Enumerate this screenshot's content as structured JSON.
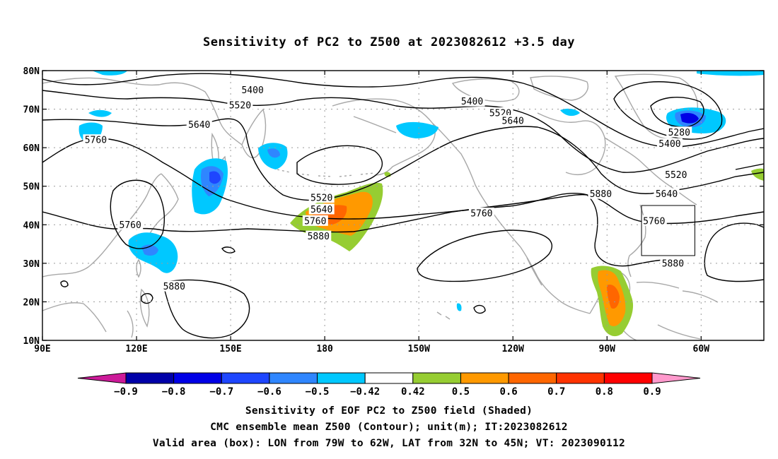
{
  "title": "Sensitivity of PC2 to Z500 at 2023082612 +3.5 day",
  "footer": {
    "line1": "Sensitivity of EOF PC2 to Z500 field (Shaded)",
    "line2": "CMC ensemble mean Z500 (Contour); unit(m); IT:2023082612",
    "line3": "Valid area (box): LON from 79W to 62W, LAT from 32N to 45N; VT: 2023090112"
  },
  "map": {
    "lat_ticks": [
      "10N",
      "20N",
      "30N",
      "40N",
      "50N",
      "60N",
      "70N",
      "80N"
    ],
    "lat_values": [
      10,
      20,
      30,
      40,
      50,
      60,
      70,
      80
    ],
    "lon_ticks": [
      "90E",
      "120E",
      "150E",
      "180",
      "150W",
      "120W",
      "90W",
      "60W"
    ],
    "lon_values": [
      90,
      120,
      150,
      180,
      210,
      240,
      270,
      300
    ],
    "lon_range": [
      90,
      320
    ],
    "lat_range": [
      10,
      80
    ],
    "contour_labels": [
      {
        "text": "5400",
        "lon": 157,
        "lat": 75
      },
      {
        "text": "5400",
        "lon": 227,
        "lat": 72
      },
      {
        "text": "5400",
        "lon": 290,
        "lat": 61
      },
      {
        "text": "5520",
        "lon": 153,
        "lat": 71
      },
      {
        "text": "5520",
        "lon": 236,
        "lat": 69
      },
      {
        "text": "5520",
        "lon": 179,
        "lat": 47
      },
      {
        "text": "5520",
        "lon": 292,
        "lat": 53
      },
      {
        "text": "5640",
        "lon": 140,
        "lat": 66
      },
      {
        "text": "5640",
        "lon": 240,
        "lat": 67
      },
      {
        "text": "5640",
        "lon": 179,
        "lat": 44
      },
      {
        "text": "5640",
        "lon": 289,
        "lat": 48
      },
      {
        "text": "5760",
        "lon": 107,
        "lat": 62
      },
      {
        "text": "5760",
        "lon": 118,
        "lat": 40
      },
      {
        "text": "5760",
        "lon": 177,
        "lat": 41
      },
      {
        "text": "5760",
        "lon": 230,
        "lat": 43
      },
      {
        "text": "5760",
        "lon": 285,
        "lat": 41
      },
      {
        "text": "5880",
        "lon": 178,
        "lat": 37
      },
      {
        "text": "5880",
        "lon": 268,
        "lat": 48
      },
      {
        "text": "5880",
        "lon": 132,
        "lat": 24
      },
      {
        "text": "5880",
        "lon": 291,
        "lat": 30
      },
      {
        "text": "5280",
        "lon": 293,
        "lat": 64
      }
    ],
    "valid_box": {
      "lon_min": 281,
      "lon_max": 298,
      "lat_min": 32,
      "lat_max": 45
    }
  },
  "colorbar": {
    "levels": [
      "−0.9",
      "−0.8",
      "−0.7",
      "−0.6",
      "−0.5",
      "−0.42",
      "0.42",
      "0.5",
      "0.6",
      "0.7",
      "0.8",
      "0.9"
    ],
    "colors": [
      "#0000a8",
      "#0000e6",
      "#1e46ff",
      "#2f86ff",
      "#00c8ff",
      "#ffffff",
      "#96cd32",
      "#ff9900",
      "#ff6600",
      "#ff3300",
      "#ff0000"
    ],
    "low_extend_color": "#cc1a99",
    "high_extend_color": "#ff99cc"
  }
}
